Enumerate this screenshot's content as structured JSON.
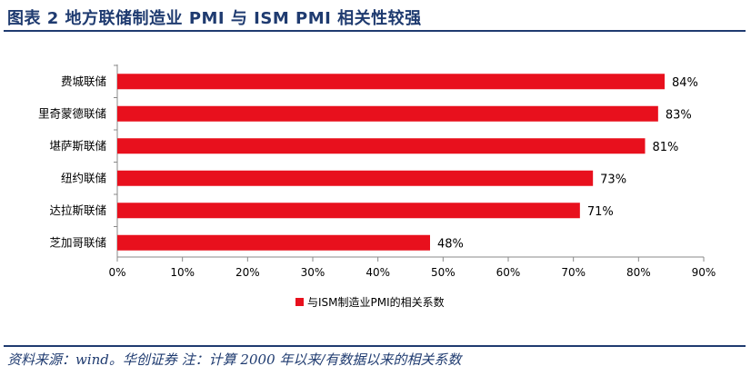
{
  "header": {
    "title": "图表 2   地方联储制造业 PMI 与 ISM PMI 相关性较强"
  },
  "footer": {
    "source": "资料来源：wind。华创证券  注：计算 2000 年以来/有数据以来的相关系数"
  },
  "colors": {
    "bar": "#e8101d",
    "accent": "#1f3b70"
  },
  "chart_data": {
    "type": "bar",
    "orientation": "horizontal",
    "categories": [
      "费城联储",
      "里奇蒙德联储",
      "堪萨斯联储",
      "纽约联储",
      "达拉斯联储",
      "芝加哥联储"
    ],
    "values": [
      84,
      83,
      81,
      73,
      71,
      48
    ],
    "value_labels": [
      "84%",
      "83%",
      "81%",
      "73%",
      "71%",
      "48%"
    ],
    "xlim": [
      0,
      90
    ],
    "x_ticks": [
      "0%",
      "10%",
      "20%",
      "30%",
      "40%",
      "50%",
      "60%",
      "70%",
      "80%",
      "90%"
    ],
    "x_tick_values": [
      0,
      10,
      20,
      30,
      40,
      50,
      60,
      70,
      80,
      90
    ],
    "legend": "与ISM制造业PMI的相关系数",
    "legend_position": "bottom",
    "grid": false
  }
}
